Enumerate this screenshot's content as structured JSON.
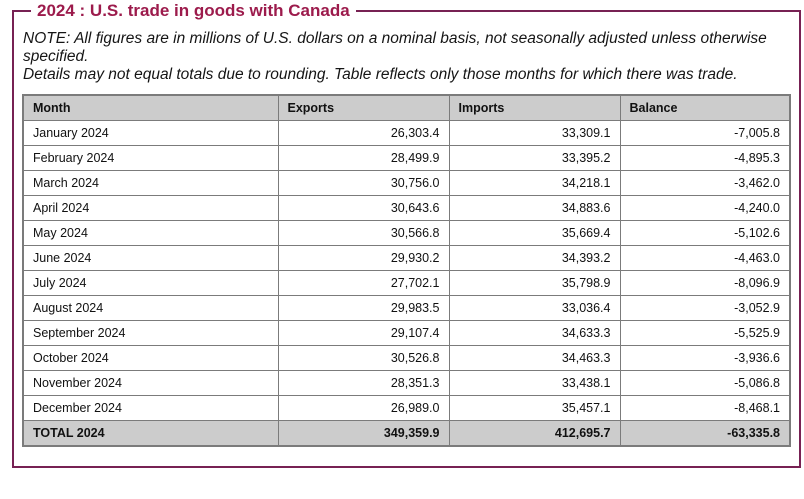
{
  "title": "2024 : U.S. trade in goods with Canada",
  "note": {
    "line1": "NOTE: All figures are in millions of U.S. dollars on a nominal basis, not seasonally adjusted unless otherwise specified.",
    "line2": "Details may not equal totals due to rounding. Table reflects only those months for which there was trade."
  },
  "table": {
    "columns": [
      "Month",
      "Exports",
      "Imports",
      "Balance"
    ],
    "rows": [
      {
        "month": "January 2024",
        "exports": "26,303.4",
        "imports": "33,309.1",
        "balance": "-7,005.8"
      },
      {
        "month": "February 2024",
        "exports": "28,499.9",
        "imports": "33,395.2",
        "balance": "-4,895.3"
      },
      {
        "month": "March 2024",
        "exports": "30,756.0",
        "imports": "34,218.1",
        "balance": "-3,462.0"
      },
      {
        "month": "April 2024",
        "exports": "30,643.6",
        "imports": "34,883.6",
        "balance": "-4,240.0"
      },
      {
        "month": "May 2024",
        "exports": "30,566.8",
        "imports": "35,669.4",
        "balance": "-5,102.6"
      },
      {
        "month": "June 2024",
        "exports": "29,930.2",
        "imports": "34,393.2",
        "balance": "-4,463.0"
      },
      {
        "month": "July 2024",
        "exports": "27,702.1",
        "imports": "35,798.9",
        "balance": "-8,096.9"
      },
      {
        "month": "August 2024",
        "exports": "29,983.5",
        "imports": "33,036.4",
        "balance": "-3,052.9"
      },
      {
        "month": "September 2024",
        "exports": "29,107.4",
        "imports": "34,633.3",
        "balance": "-5,525.9"
      },
      {
        "month": "October 2024",
        "exports": "30,526.8",
        "imports": "34,463.3",
        "balance": "-3,936.6"
      },
      {
        "month": "November 2024",
        "exports": "28,351.3",
        "imports": "33,438.1",
        "balance": "-5,086.8"
      },
      {
        "month": "December 2024",
        "exports": "26,989.0",
        "imports": "35,457.1",
        "balance": "-8,468.1"
      }
    ],
    "total": {
      "month": "TOTAL 2024",
      "exports": "349,359.9",
      "imports": "412,695.7",
      "balance": "-63,335.8"
    }
  },
  "colors": {
    "accent_title": "#9c1b4c",
    "panel_border": "#772153",
    "table_border": "#7b7b7b",
    "header_bg": "#cccccc",
    "total_bg": "#cccccc"
  }
}
